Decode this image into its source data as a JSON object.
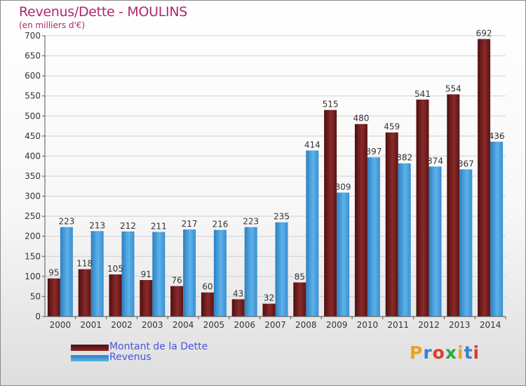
{
  "header": {
    "title": "Revenus/Dette - MOULINS",
    "subtitle": "(en milliers d'€)"
  },
  "logo": {
    "text": "Proxiti",
    "colors": [
      "#f0a020",
      "#3b7fd4",
      "#e23a2a",
      "#2aa84a",
      "#f0a020",
      "#3b7fd4",
      "#e23a2a"
    ]
  },
  "colors": {
    "dette": "#7a1d1d",
    "revenus": "#4aa3e0"
  },
  "chart_data": {
    "type": "bar",
    "title": "Revenus/Dette - MOULINS",
    "subtitle": "(en milliers d'€)",
    "xlabel": "",
    "ylabel": "",
    "ylim": [
      0,
      700
    ],
    "yticks": [
      0,
      50,
      100,
      150,
      200,
      250,
      300,
      350,
      400,
      450,
      500,
      550,
      600,
      650,
      700
    ],
    "grid": true,
    "legend_position": "bottom-left",
    "categories": [
      "2000",
      "2001",
      "2002",
      "2003",
      "2004",
      "2005",
      "2006",
      "2007",
      "2008",
      "2009",
      "2010",
      "2011",
      "2012",
      "2013",
      "2014"
    ],
    "series": [
      {
        "name": "Montant de la Dette",
        "color": "#7a1d1d",
        "values": [
          95,
          118,
          105,
          91,
          76,
          60,
          43,
          32,
          85,
          515,
          480,
          459,
          541,
          554,
          692
        ]
      },
      {
        "name": "Revenus",
        "color": "#4aa3e0",
        "values": [
          223,
          213,
          212,
          211,
          217,
          216,
          223,
          235,
          414,
          309,
          397,
          382,
          374,
          367,
          436
        ]
      }
    ]
  }
}
